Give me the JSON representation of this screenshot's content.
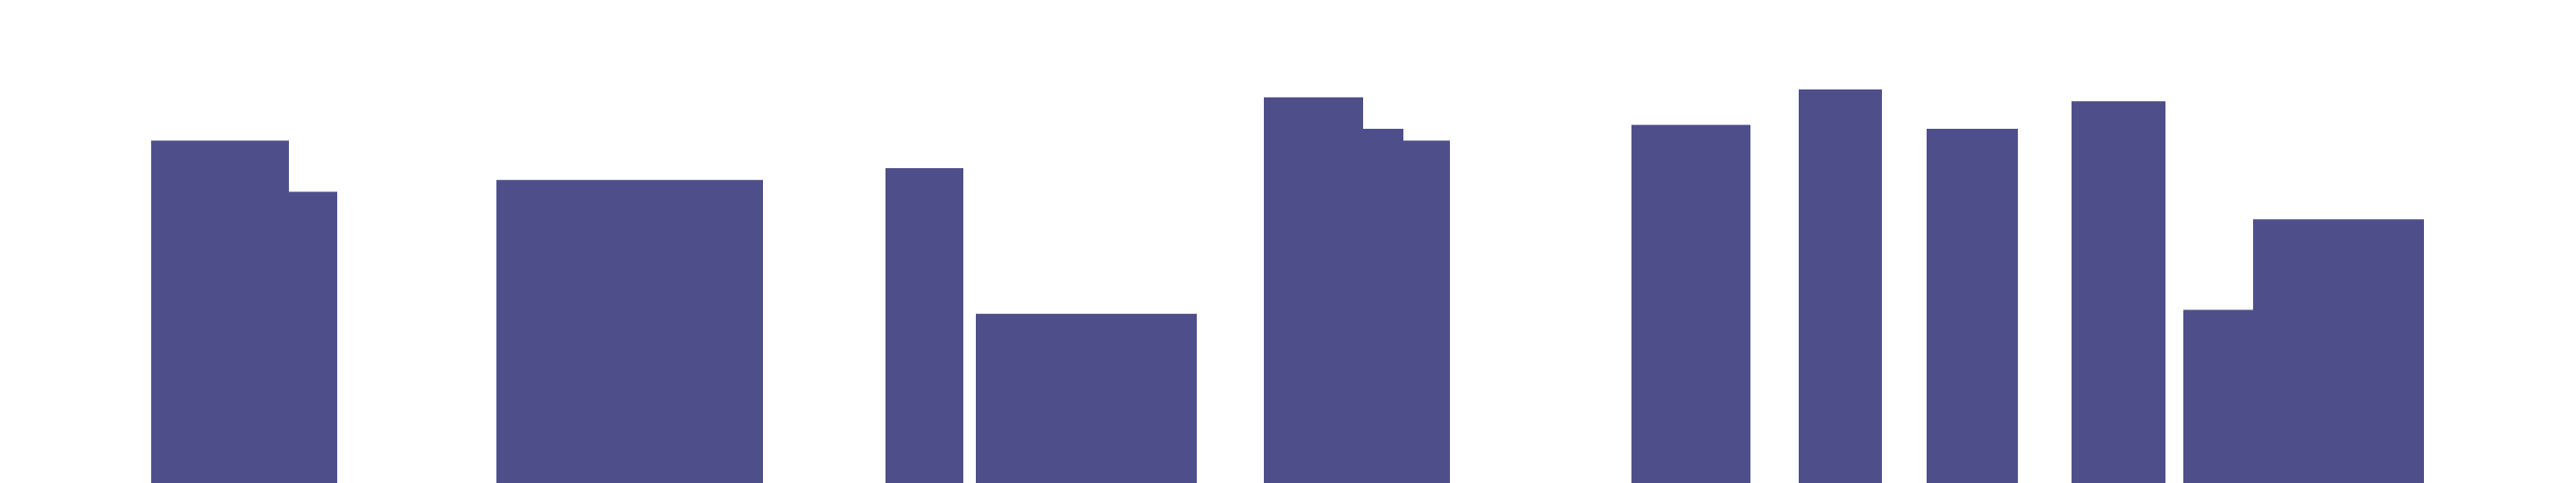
{
  "chart_data": {
    "type": "bar",
    "title": "",
    "xlabel": "",
    "ylabel": "",
    "ylim": [
      0,
      100
    ],
    "grid": false,
    "legend": "none",
    "bar_color": "#4e4f8a",
    "background": "#ffffff",
    "groups": [
      {
        "values": [
          87,
          74
        ]
      },
      {
        "values": [
          77
        ]
      },
      {
        "values": [
          80,
          43
        ]
      },
      {
        "values": [
          98,
          90,
          87
        ]
      },
      {
        "values": [
          91,
          100,
          90,
          97,
          44,
          67
        ]
      }
    ]
  }
}
